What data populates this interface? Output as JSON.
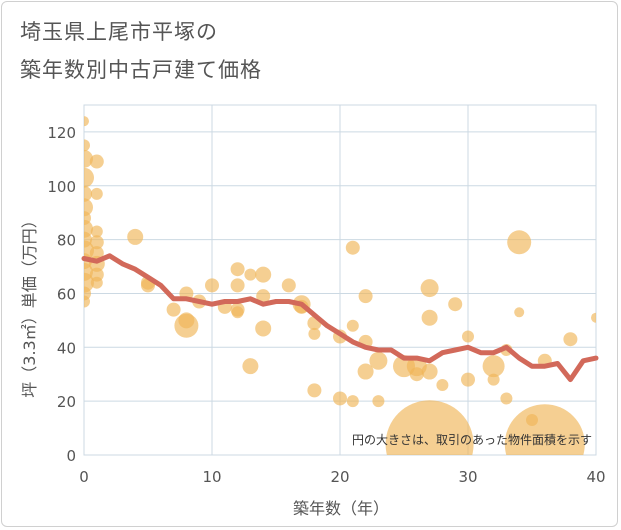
{
  "title_lines": [
    "埼玉県上尾市平塚の",
    "築年数別中古戸建て価格"
  ],
  "chart_data": {
    "type": "scatter",
    "title": "埼玉県上尾市平塚の築年数別中古戸建て価格",
    "xlabel": "築年数（年）",
    "ylabel": "坪（3.3㎡）単価（万円）",
    "xlim": [
      0,
      40
    ],
    "ylim": [
      0,
      130
    ],
    "x_ticks": [
      "0",
      "10",
      "20",
      "30",
      "40"
    ],
    "y_ticks": [
      "0",
      "20",
      "40",
      "60",
      "80",
      "100",
      "120"
    ],
    "grid": true,
    "annotation": "円の大きさは、取引のあった物件面積を示す",
    "colors": {
      "bubble": "#f0b558",
      "line": "#d2695a",
      "grid": "#ccd9e3"
    },
    "bubbles": [
      {
        "x": 0,
        "y": 124,
        "s": 5
      },
      {
        "x": 0,
        "y": 115,
        "s": 6
      },
      {
        "x": 0,
        "y": 110,
        "s": 9
      },
      {
        "x": 0,
        "y": 103,
        "s": 10
      },
      {
        "x": 0,
        "y": 97,
        "s": 8
      },
      {
        "x": 0,
        "y": 92,
        "s": 9
      },
      {
        "x": 0,
        "y": 88,
        "s": 7
      },
      {
        "x": 0,
        "y": 84,
        "s": 9
      },
      {
        "x": 0,
        "y": 80,
        "s": 8
      },
      {
        "x": 0,
        "y": 76,
        "s": 10
      },
      {
        "x": 0,
        "y": 72,
        "s": 8
      },
      {
        "x": 0,
        "y": 68,
        "s": 9
      },
      {
        "x": 0,
        "y": 64,
        "s": 10
      },
      {
        "x": 0,
        "y": 60,
        "s": 7
      },
      {
        "x": 0,
        "y": 57,
        "s": 6
      },
      {
        "x": 1,
        "y": 109,
        "s": 7
      },
      {
        "x": 1,
        "y": 97,
        "s": 6
      },
      {
        "x": 1,
        "y": 83,
        "s": 6
      },
      {
        "x": 1,
        "y": 79,
        "s": 7
      },
      {
        "x": 1,
        "y": 75,
        "s": 7
      },
      {
        "x": 1,
        "y": 71,
        "s": 8
      },
      {
        "x": 1,
        "y": 67,
        "s": 7
      },
      {
        "x": 1,
        "y": 64,
        "s": 6
      },
      {
        "x": 4,
        "y": 81,
        "s": 8
      },
      {
        "x": 5,
        "y": 64,
        "s": 7
      },
      {
        "x": 5,
        "y": 63,
        "s": 7
      },
      {
        "x": 7,
        "y": 54,
        "s": 7
      },
      {
        "x": 8,
        "y": 60,
        "s": 7
      },
      {
        "x": 8,
        "y": 50,
        "s": 8
      },
      {
        "x": 8,
        "y": 48,
        "s": 12
      },
      {
        "x": 9,
        "y": 57,
        "s": 7
      },
      {
        "x": 10,
        "y": 63,
        "s": 7
      },
      {
        "x": 11,
        "y": 55,
        "s": 7
      },
      {
        "x": 12,
        "y": 69,
        "s": 7
      },
      {
        "x": 12,
        "y": 63,
        "s": 7
      },
      {
        "x": 12,
        "y": 54,
        "s": 7
      },
      {
        "x": 12,
        "y": 53,
        "s": 6
      },
      {
        "x": 13,
        "y": 67,
        "s": 6
      },
      {
        "x": 13,
        "y": 33,
        "s": 8
      },
      {
        "x": 14,
        "y": 67,
        "s": 8
      },
      {
        "x": 14,
        "y": 59,
        "s": 7
      },
      {
        "x": 14,
        "y": 47,
        "s": 8
      },
      {
        "x": 16,
        "y": 63,
        "s": 7
      },
      {
        "x": 17,
        "y": 56,
        "s": 9
      },
      {
        "x": 17,
        "y": 55,
        "s": 7
      },
      {
        "x": 18,
        "y": 49,
        "s": 7
      },
      {
        "x": 18,
        "y": 45,
        "s": 6
      },
      {
        "x": 18,
        "y": 24,
        "s": 7
      },
      {
        "x": 20,
        "y": 44,
        "s": 7
      },
      {
        "x": 20,
        "y": 21,
        "s": 7
      },
      {
        "x": 21,
        "y": 77,
        "s": 7
      },
      {
        "x": 21,
        "y": 48,
        "s": 6
      },
      {
        "x": 21,
        "y": 20,
        "s": 6
      },
      {
        "x": 22,
        "y": 59,
        "s": 7
      },
      {
        "x": 22,
        "y": 42,
        "s": 7
      },
      {
        "x": 22,
        "y": 31,
        "s": 8
      },
      {
        "x": 23,
        "y": 35,
        "s": 9
      },
      {
        "x": 23,
        "y": 20,
        "s": 6
      },
      {
        "x": 25,
        "y": 33,
        "s": 11
      },
      {
        "x": 26,
        "y": 33,
        "s": 10
      },
      {
        "x": 26,
        "y": 30,
        "s": 7
      },
      {
        "x": 27,
        "y": 62,
        "s": 9
      },
      {
        "x": 27,
        "y": 51,
        "s": 8
      },
      {
        "x": 27,
        "y": 31,
        "s": 8
      },
      {
        "x": 27,
        "y": 4,
        "s": 44
      },
      {
        "x": 28,
        "y": 26,
        "s": 6
      },
      {
        "x": 29,
        "y": 56,
        "s": 7
      },
      {
        "x": 30,
        "y": 44,
        "s": 6
      },
      {
        "x": 30,
        "y": 28,
        "s": 7
      },
      {
        "x": 32,
        "y": 33,
        "s": 11
      },
      {
        "x": 32,
        "y": 28,
        "s": 6
      },
      {
        "x": 33,
        "y": 39,
        "s": 6
      },
      {
        "x": 33,
        "y": 21,
        "s": 6
      },
      {
        "x": 34,
        "y": 79,
        "s": 12
      },
      {
        "x": 34,
        "y": 53,
        "s": 5
      },
      {
        "x": 35,
        "y": 13,
        "s": 6
      },
      {
        "x": 36,
        "y": 35,
        "s": 7
      },
      {
        "x": 36,
        "y": 4,
        "s": 40
      },
      {
        "x": 38,
        "y": 43,
        "s": 7
      },
      {
        "x": 40,
        "y": 51,
        "s": 5
      }
    ],
    "line": {
      "x": [
        0,
        1,
        2,
        3,
        4,
        5,
        6,
        7,
        8,
        9,
        10,
        11,
        12,
        13,
        14,
        15,
        16,
        17,
        18,
        19,
        20,
        21,
        22,
        23,
        24,
        25,
        26,
        27,
        28,
        29,
        30,
        31,
        32,
        33,
        34,
        35,
        36,
        37,
        38,
        39,
        40
      ],
      "y": [
        73,
        72,
        74,
        71,
        69,
        66,
        63,
        58,
        58,
        57,
        56,
        57,
        57,
        58,
        56,
        57,
        57,
        56,
        52,
        48,
        45,
        42,
        40,
        39,
        39,
        36,
        36,
        35,
        38,
        39,
        40,
        38,
        38,
        40,
        36,
        33,
        33,
        34,
        28,
        35,
        36
      ]
    }
  }
}
